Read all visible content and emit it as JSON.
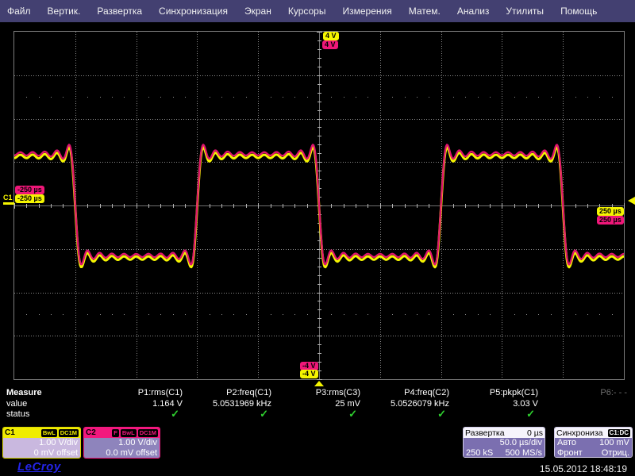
{
  "menu": {
    "items": [
      "Файл",
      "Вертик.",
      "Развертка",
      "Синхронизация",
      "Экран",
      "Курсоры",
      "Измерения",
      "Матем.",
      "Анализ",
      "Утилиты",
      "Помощь"
    ]
  },
  "trace_labels": {
    "c1_top": "4 V",
    "c2_top": "4 V",
    "c2_bottom": "-4 V",
    "c1_bottom": "-4 V",
    "c2_left": "-250 µs",
    "c1_left": "-250 µs",
    "c1_right": "250 µs",
    "c2_right": "250 µs",
    "c1_marker": "C1"
  },
  "measure": {
    "row_labels": {
      "measure": "Measure",
      "value": "value",
      "status": "status"
    },
    "columns": [
      {
        "label": "P1:rms(C1)",
        "value": "1.164 V",
        "status": "✓"
      },
      {
        "label": "P2:freq(C1)",
        "value": "5.0531969 kHz",
        "status": "✓"
      },
      {
        "label": "P3:rms(C3)",
        "value": "25 mV",
        "status": "✓"
      },
      {
        "label": "P4:freq(C2)",
        "value": "5.0526079 kHz",
        "status": "✓"
      },
      {
        "label": "P5:pkpk(C1)",
        "value": "3.03 V",
        "status": "✓"
      },
      {
        "label": "P6:- - -",
        "value": "",
        "status": ""
      }
    ]
  },
  "channels": [
    {
      "id": "C1",
      "badges": [
        "BwL",
        "DC1M"
      ],
      "scale": "1.00 V/div",
      "offset": "0 mV offset",
      "color": "#f0ec00"
    },
    {
      "id": "C2",
      "badges": [
        "F",
        "BwL",
        "DC1M"
      ],
      "scale": "1.00 V/div",
      "offset": "0.0 mV offset",
      "color": "#f2187e"
    }
  ],
  "timebase": {
    "title": "Развертка",
    "delay": "0 µs",
    "scale": "50.0 µs/div",
    "samples": "250 kS",
    "rate": "500 MS/s"
  },
  "trigger": {
    "title": "Синхрониза",
    "source_badge": "C1:DC",
    "mode": "Авто",
    "level": "100 mV",
    "coupling": "Фронт",
    "slope": "Отриц."
  },
  "footer": {
    "logo": "LeCroy",
    "timestamp": "15.05.2012 18:48:19"
  },
  "chart_data": {
    "type": "line",
    "title": "Band-limited square wave with Gibbs ringing, C1 and C2 overlaid",
    "x_axis": {
      "unit": "µs",
      "per_div": 50,
      "divisions": 10,
      "range": [
        -250,
        250
      ],
      "grid": "dotted"
    },
    "y_axis": {
      "unit": "V",
      "per_div": 1,
      "divisions": 8,
      "range": [
        -4,
        4
      ],
      "grid": "dotted"
    },
    "trigger_point": {
      "time_us": 0,
      "level_v": 0.1,
      "slope": "falling"
    },
    "series": [
      {
        "name": "C1",
        "color": "#f5f500",
        "waveform": "band-limited square",
        "amplitude_v": 1.17,
        "period_us": 200,
        "frequency_khz": 5.053,
        "harmonics_max": 19,
        "offset_v": -0.04,
        "measured": {
          "rms_v": 1.164,
          "pkpk_v": 3.03
        }
      },
      {
        "name": "C2",
        "color": "#e0156e",
        "waveform": "band-limited square",
        "amplitude_v": 1.17,
        "period_us": 200,
        "frequency_khz": 5.0526,
        "harmonics_max": 19,
        "offset_v": 0.02,
        "measured": {
          "freq_khz": 5.0526079
        }
      }
    ]
  }
}
